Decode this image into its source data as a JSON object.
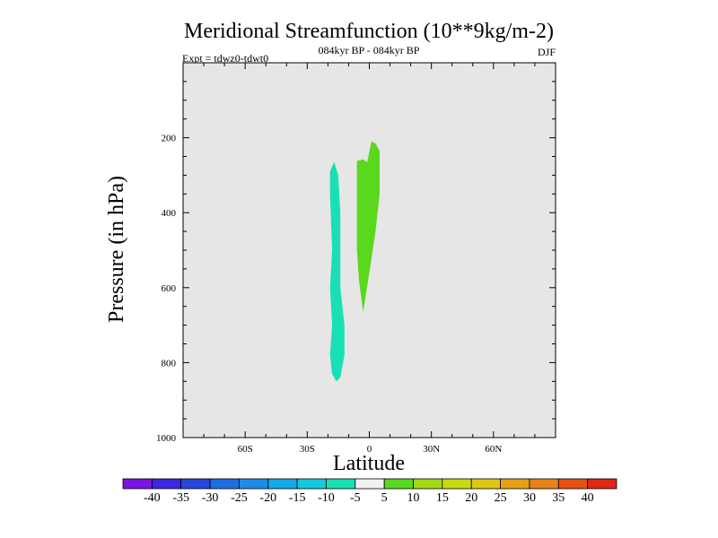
{
  "chart_data": {
    "type": "heatmap",
    "title": "Meridional Streamfunction (10**9kg/m-2)",
    "subtitle": "084kyr BP - 084kyr BP",
    "experiment": "Expt = tdwz0-tdwt0",
    "season": "DJF",
    "xlabel": "Latitude",
    "ylabel": "Pressure (in hPa)",
    "xlim": [
      -90,
      90
    ],
    "ylim": [
      1000,
      0
    ],
    "x_ticks": [
      {
        "value": -60,
        "label": "60S"
      },
      {
        "value": -30,
        "label": "30S"
      },
      {
        "value": 0,
        "label": "0"
      },
      {
        "value": 30,
        "label": "30N"
      },
      {
        "value": 60,
        "label": "60N"
      }
    ],
    "y_ticks": [
      {
        "value": 200,
        "label": "200"
      },
      {
        "value": 400,
        "label": "400"
      },
      {
        "value": 600,
        "label": "600"
      },
      {
        "value": 800,
        "label": "800"
      },
      {
        "value": 1000,
        "label": "1000"
      }
    ],
    "background_color": "#e6e6e6",
    "regions": [
      {
        "name": "negative cell",
        "level": "-10 to -5",
        "color": "#19e0b4",
        "points": [
          [
            -17,
            265
          ],
          [
            -15,
            300
          ],
          [
            -14,
            400
          ],
          [
            -14,
            600
          ],
          [
            -12,
            700
          ],
          [
            -12,
            780
          ],
          [
            -14,
            840
          ],
          [
            -16,
            850
          ],
          [
            -18,
            830
          ],
          [
            -19,
            780
          ],
          [
            -18,
            700
          ],
          [
            -19,
            600
          ],
          [
            -18,
            500
          ],
          [
            -19,
            350
          ],
          [
            -19,
            290
          ]
        ]
      },
      {
        "name": "positive cell",
        "level": "5 to 10",
        "color": "#5ad81e",
        "points": [
          [
            -6,
            262
          ],
          [
            -3,
            258
          ],
          [
            -1,
            265
          ],
          [
            1,
            210
          ],
          [
            3,
            215
          ],
          [
            5,
            235
          ],
          [
            5,
            350
          ],
          [
            3,
            450
          ],
          [
            0,
            560
          ],
          [
            -3,
            665
          ],
          [
            -5,
            580
          ],
          [
            -6,
            500
          ],
          [
            -6,
            400
          ],
          [
            -6,
            320
          ]
        ]
      }
    ],
    "colorbar": {
      "labels": [
        "-40",
        "-35",
        "-30",
        "-25",
        "-20",
        "-15",
        "-10",
        "-5",
        "5",
        "10",
        "15",
        "20",
        "25",
        "30",
        "35",
        "40"
      ],
      "colors": [
        "#7a14e0",
        "#3c28e0",
        "#2846dc",
        "#1e6ee0",
        "#1e8ce6",
        "#14a8e6",
        "#14c8e0",
        "#19e0b4",
        "#f0f0f0",
        "#5ad81e",
        "#a0d814",
        "#c8d814",
        "#dcc814",
        "#e6a014",
        "#e68214",
        "#e65014",
        "#dc2814"
      ]
    }
  }
}
